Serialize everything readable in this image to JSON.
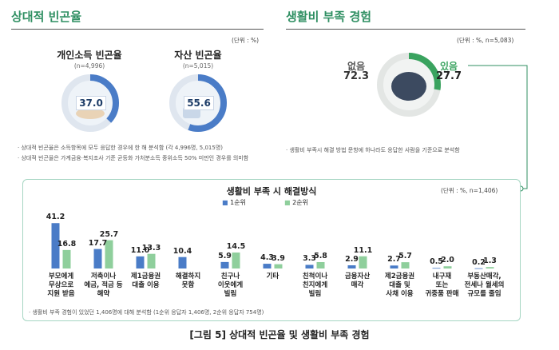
{
  "left_section": {
    "title": "상대적 빈곤율",
    "unit": "(단위 : %)",
    "cards": [
      {
        "title": "개인소득 빈곤율",
        "sample": "(n=4,996)",
        "value": 37.0,
        "value_text": "37.0"
      },
      {
        "title": "자산 빈곤율",
        "sample": "(n=5,015)",
        "value": 55.6,
        "value_text": "55.6"
      }
    ],
    "notes": [
      "상대적 빈곤율은 소득항목에 모두 응답한 경우에 한 해 분석함 (각 4,996명, 5,015명)",
      "상대적 빈곤율은 가계금융·복지조사 기준 균등화 가처분소득 중위소득 50% 미만인 경우를 의미함"
    ]
  },
  "right_section": {
    "title": "생활비 부족 경험",
    "unit": "(단위 : %, n=5,083)",
    "items": [
      {
        "label": "없음",
        "value": 72.3,
        "value_text": "72.3"
      },
      {
        "label": "있음",
        "value": 27.7,
        "value_text": "27.7"
      }
    ],
    "note": "생활비 부족시 해결 방법 문항에 하나라도 응답한 사람을 기준으로 분석함"
  },
  "panel": {
    "title": "생활비 부족 시 해결방식",
    "unit": "(단위 : %, n=1,406)",
    "note": "생활비 부족 경험이 있었던 1,406명에 대해 분석함 (1순위 응답자 1,406명, 2순위 응답자 754명)"
  },
  "chart_data": {
    "type": "bar",
    "title": "생활비 부족 시 해결방식",
    "categories": [
      "부모에게\n무상으로\n지원 받음",
      "저축이나\n예금, 적금 등\n해약",
      "제1금융권\n대출 이용",
      "해결하지\n못함",
      "친구나\n이웃에게\n빌림",
      "기타",
      "친척이나\n친지에게\n빌림",
      "금융자산\n매각",
      "제2금융권\n대출 및\n사채 이용",
      "내구재\n또는\n귀중품 판매",
      "부동산매각,\n전세나 월세의\n규모를 줄임"
    ],
    "series": [
      {
        "name": "1순위",
        "color": "#4a7cc7",
        "values": [
          41.2,
          17.7,
          11.0,
          10.4,
          5.9,
          4.3,
          3.3,
          2.9,
          2.7,
          0.5,
          0.2
        ],
        "labels": [
          "41.2",
          "17.7",
          "11.0",
          "10.4",
          "5.9",
          "4.3",
          "3.3",
          "2.9",
          "2.7",
          "0.5",
          "0.2"
        ]
      },
      {
        "name": "2순위",
        "color": "#8fcf9c",
        "values": [
          16.8,
          25.7,
          13.3,
          null,
          14.5,
          3.9,
          5.8,
          11.1,
          5.7,
          2.0,
          1.3
        ],
        "labels": [
          "16.8",
          "25.7",
          "13.3",
          "",
          "14.5",
          "3.9",
          "5.8",
          "11.1",
          "5.7",
          "2.0",
          "1.3"
        ]
      }
    ],
    "ylim": [
      0,
      45
    ],
    "legend_position": "top-center",
    "grid": false
  },
  "caption": "[그림 5] 상대적 빈곤율 및 생활비 부족 경험",
  "colors": {
    "accent": "#2f8f62",
    "donut_fill": "#4a7cc7",
    "donut_track": "#dfe6ef",
    "positive": "#3aa35f",
    "muted": "#8a8a8a"
  }
}
